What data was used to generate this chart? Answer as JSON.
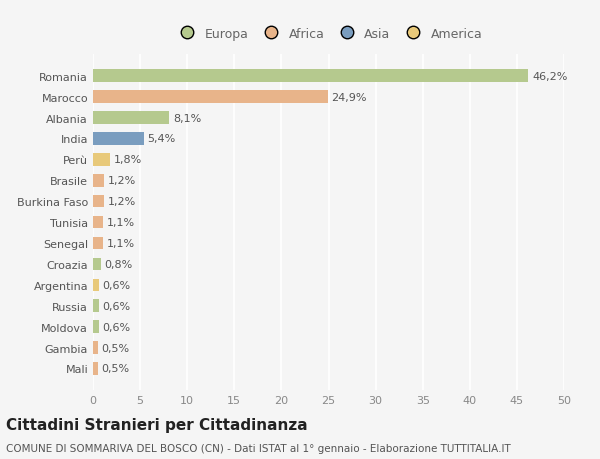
{
  "countries": [
    "Romania",
    "Marocco",
    "Albania",
    "India",
    "Perù",
    "Brasile",
    "Burkina Faso",
    "Tunisia",
    "Senegal",
    "Croazia",
    "Argentina",
    "Russia",
    "Moldova",
    "Gambia",
    "Mali"
  ],
  "values": [
    46.2,
    24.9,
    8.1,
    5.4,
    1.8,
    1.2,
    1.2,
    1.1,
    1.1,
    0.8,
    0.6,
    0.6,
    0.6,
    0.5,
    0.5
  ],
  "colors": [
    "#b5c98e",
    "#e8b48a",
    "#b5c98e",
    "#7a9dbf",
    "#e8c97a",
    "#e8b48a",
    "#e8b48a",
    "#e8b48a",
    "#e8b48a",
    "#b5c98e",
    "#e8c97a",
    "#b5c98e",
    "#b5c98e",
    "#e8b48a",
    "#e8b48a"
  ],
  "labels": [
    "46,2%",
    "24,9%",
    "8,1%",
    "5,4%",
    "1,8%",
    "1,2%",
    "1,2%",
    "1,1%",
    "1,1%",
    "0,8%",
    "0,6%",
    "0,6%",
    "0,6%",
    "0,5%",
    "0,5%"
  ],
  "legend_labels": [
    "Europa",
    "Africa",
    "Asia",
    "America"
  ],
  "legend_colors": [
    "#b5c98e",
    "#e8b48a",
    "#7a9dbf",
    "#e8c97a"
  ],
  "xlim": [
    0,
    50
  ],
  "xticks": [
    0,
    5,
    10,
    15,
    20,
    25,
    30,
    35,
    40,
    45,
    50
  ],
  "title": "Cittadini Stranieri per Cittadinanza",
  "subtitle": "COMUNE DI SOMMARIVA DEL BOSCO (CN) - Dati ISTAT al 1° gennaio - Elaborazione TUTTITALIA.IT",
  "background_color": "#f5f5f5",
  "grid_color": "#ffffff",
  "bar_height": 0.6,
  "label_fontsize": 8,
  "tick_fontsize": 8,
  "title_fontsize": 11,
  "subtitle_fontsize": 7.5
}
